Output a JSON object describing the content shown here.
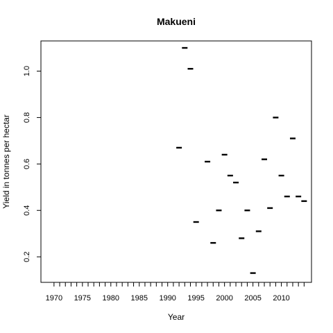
{
  "chart_data": {
    "type": "scatter",
    "title": "Makueni",
    "xlabel": "Year",
    "ylabel": "Yield in tonnes per hectar",
    "xlim": [
      1967.7,
      2015.3
    ],
    "ylim": [
      0.09,
      1.13
    ],
    "x_ticks": [
      1970,
      1971,
      1972,
      1973,
      1974,
      1975,
      1976,
      1977,
      1978,
      1979,
      1980,
      1981,
      1982,
      1983,
      1984,
      1985,
      1986,
      1987,
      1988,
      1989,
      1990,
      1991,
      1992,
      1993,
      1994,
      1995,
      1996,
      1997,
      1998,
      1999,
      2000,
      2001,
      2002,
      2003,
      2004,
      2005,
      2006,
      2007,
      2008,
      2009,
      2010,
      2011,
      2012,
      2013,
      2014
    ],
    "x_tick_labels": [
      {
        "value": 1970,
        "label": "1970"
      },
      {
        "value": 1975,
        "label": "1975"
      },
      {
        "value": 1980,
        "label": "1980"
      },
      {
        "value": 1985,
        "label": "1985"
      },
      {
        "value": 1990,
        "label": "1990"
      },
      {
        "value": 1995,
        "label": "1995"
      },
      {
        "value": 2000,
        "label": "2000"
      },
      {
        "value": 2005,
        "label": "2005"
      },
      {
        "value": 2010,
        "label": "2010"
      }
    ],
    "y_ticks": [
      {
        "value": 0.2,
        "label": "0.2"
      },
      {
        "value": 0.4,
        "label": "0.4"
      },
      {
        "value": 0.6,
        "label": "0.6"
      },
      {
        "value": 0.8,
        "label": "0.8"
      },
      {
        "value": 1.0,
        "label": "1.0"
      }
    ],
    "grid": false,
    "points": [
      {
        "x": 1992,
        "y": 0.67
      },
      {
        "x": 1993,
        "y": 1.1
      },
      {
        "x": 1994,
        "y": 1.01
      },
      {
        "x": 1995,
        "y": 0.35
      },
      {
        "x": 1997,
        "y": 0.61
      },
      {
        "x": 1998,
        "y": 0.26
      },
      {
        "x": 1999,
        "y": 0.4
      },
      {
        "x": 2000,
        "y": 0.64
      },
      {
        "x": 2001,
        "y": 0.55
      },
      {
        "x": 2002,
        "y": 0.52
      },
      {
        "x": 2003,
        "y": 0.28
      },
      {
        "x": 2004,
        "y": 0.4
      },
      {
        "x": 2005,
        "y": 0.13
      },
      {
        "x": 2006,
        "y": 0.31
      },
      {
        "x": 2007,
        "y": 0.62
      },
      {
        "x": 2008,
        "y": 0.41
      },
      {
        "x": 2009,
        "y": 0.8
      },
      {
        "x": 2010,
        "y": 0.55
      },
      {
        "x": 2011,
        "y": 0.46
      },
      {
        "x": 2012,
        "y": 0.71
      },
      {
        "x": 2013,
        "y": 0.46
      },
      {
        "x": 2014,
        "y": 0.44
      }
    ]
  }
}
